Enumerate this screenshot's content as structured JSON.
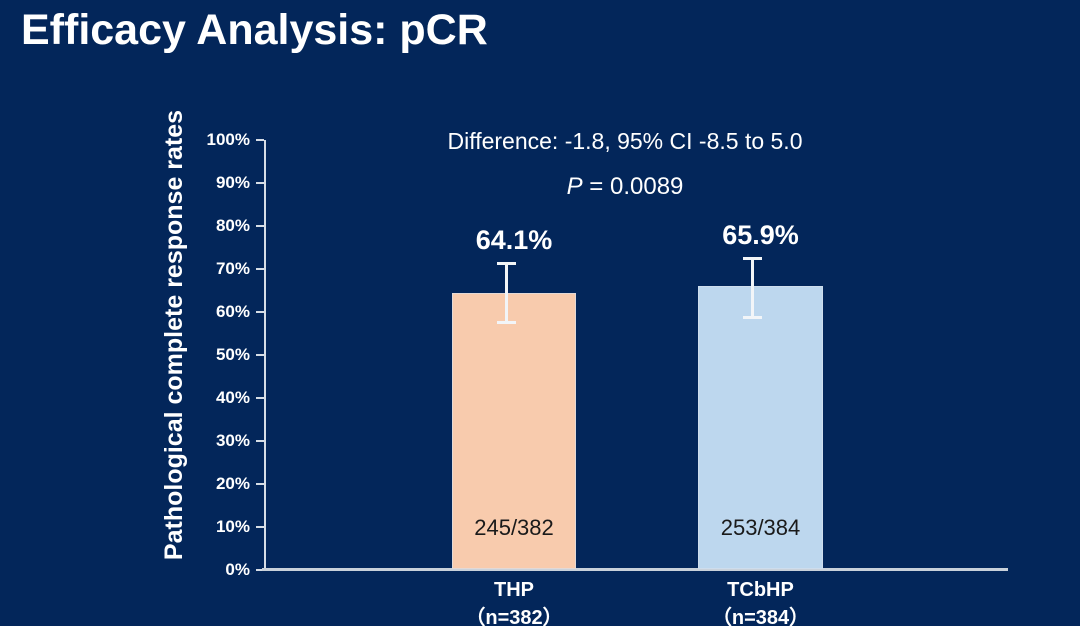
{
  "slide": {
    "title": "Efficacy Analysis: pCR",
    "background_color": "#03265a",
    "text_color": "#ffffff"
  },
  "annotations": {
    "difference_line": "Difference: -1.8, 95% CI -8.5 to 5.0",
    "p_prefix": "P",
    "p_rest": " = 0.0089"
  },
  "chart_data": {
    "type": "bar",
    "title": "",
    "xlabel": "",
    "ylabel": "Pathological complete response rates",
    "ylim": [
      0,
      100
    ],
    "grid": false,
    "legend": "none",
    "ytick_labels": [
      "0%",
      "10%",
      "20%",
      "30%",
      "40%",
      "50%",
      "60%",
      "70%",
      "80%",
      "90%",
      "100%"
    ],
    "axis_color": "#d6dde6",
    "baseline_color": "#c9d1da",
    "categories": [
      "THP",
      "TCbHP"
    ],
    "values": [
      64.1,
      65.9
    ],
    "bars": [
      {
        "category_line1": "THP",
        "category_line2": "（n=382）",
        "value_pct": 64.1,
        "value_label": "64.1%",
        "fraction": "245/382",
        "ci_low_pct": 57.5,
        "ci_high_pct": 71.5,
        "color": "#F8CBAD"
      },
      {
        "category_line1": "TCbHP",
        "category_line2": "（n=384）",
        "value_pct": 65.9,
        "value_label": "65.9%",
        "fraction": "253/384",
        "ci_low_pct": 58.5,
        "ci_high_pct": 72.5,
        "color": "#BDD7EE"
      }
    ]
  }
}
